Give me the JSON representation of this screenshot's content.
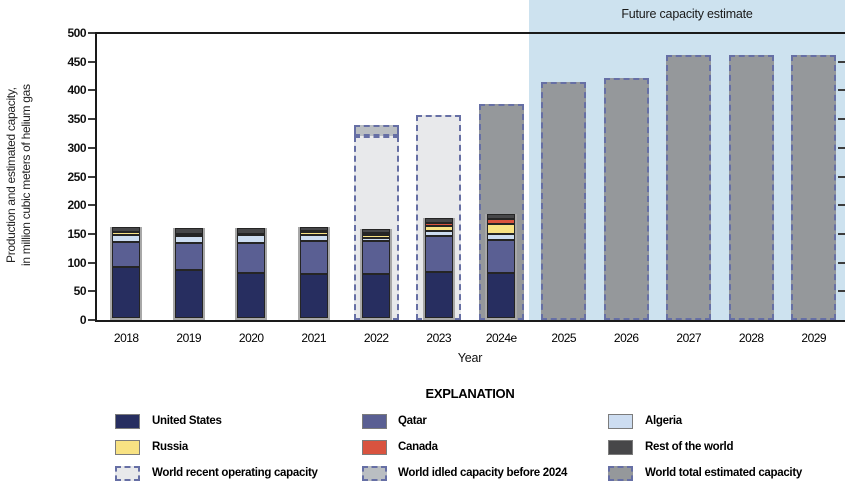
{
  "header": {
    "future_label": "Future capacity estimate"
  },
  "y_axis": {
    "title_line1": "Production and estimated capacity,",
    "title_line2": "in million cubic meters of helium gas",
    "tick_values": [
      0,
      50,
      100,
      150,
      200,
      250,
      300,
      350,
      400,
      450,
      500
    ]
  },
  "x_axis": {
    "label": "Year"
  },
  "legend": {
    "heading": "EXPLANATION",
    "columns": [
      [
        {
          "label": "United States",
          "swatch": "united_states",
          "dashed": false
        },
        {
          "label": "Russia",
          "swatch": "russia",
          "dashed": false
        },
        {
          "label": "World recent operating capacity",
          "swatch": "recent",
          "dashed": true
        }
      ],
      [
        {
          "label": "Qatar",
          "swatch": "qatar",
          "dashed": false
        },
        {
          "label": "Canada",
          "swatch": "canada",
          "dashed": false
        },
        {
          "label": "World idled capacity before 2024",
          "swatch": "idled",
          "dashed": true
        }
      ],
      [
        {
          "label": "Algeria",
          "swatch": "algeria",
          "dashed": false
        },
        {
          "label": "Rest of the world",
          "swatch": "rest_of_world",
          "dashed": false
        },
        {
          "label": "World total estimated capacity",
          "swatch": "total",
          "dashed": true
        }
      ]
    ]
  },
  "colors": {
    "united_states": "#272e60",
    "qatar": "#5a5f93",
    "algeria": "#cdddf1",
    "russia": "#f8e283",
    "canada": "#d9533f",
    "rest_of_world": "#474749",
    "recent": "#e8e9eb",
    "idled": "#babec2",
    "total": "#95989b",
    "future_bg": "#cde2ef",
    "dash_border": "#666fa5",
    "axis": "#1a1a1a"
  },
  "chart_data": {
    "type": "bar",
    "stacked": true,
    "xlabel": "Year",
    "ylabel": "Production and estimated capacity, in million cubic meters of helium gas",
    "ylim": [
      0,
      500
    ],
    "ytick_step": 50,
    "grid": false,
    "legend_position": "bottom",
    "categories": [
      "2018",
      "2019",
      "2020",
      "2021",
      "2022",
      "2023",
      "2024e",
      "2025",
      "2026",
      "2027",
      "2028",
      "2029"
    ],
    "series": [
      {
        "name": "United States",
        "color_key": "united_states",
        "values": [
          88,
          83,
          79,
          76,
          77,
          80,
          78,
          0,
          0,
          0,
          0,
          0
        ]
      },
      {
        "name": "Qatar",
        "color_key": "qatar",
        "values": [
          45,
          48,
          52,
          59,
          57,
          63,
          58,
          0,
          0,
          0,
          0,
          0
        ]
      },
      {
        "name": "Algeria",
        "color_key": "algeria",
        "values": [
          12,
          12,
          13,
          10,
          6,
          9,
          11,
          0,
          0,
          0,
          0,
          0
        ]
      },
      {
        "name": "Russia",
        "color_key": "russia",
        "values": [
          4,
          4,
          3,
          5,
          5,
          8,
          17,
          0,
          0,
          0,
          0,
          0
        ]
      },
      {
        "name": "Canada",
        "color_key": "canada",
        "values": [
          0,
          0,
          0,
          1,
          3,
          6,
          8,
          0,
          0,
          0,
          0,
          0
        ]
      },
      {
        "name": "Rest of the world",
        "color_key": "rest_of_world",
        "values": [
          9,
          9,
          10,
          8,
          7,
          8,
          9,
          0,
          0,
          0,
          0,
          0
        ]
      }
    ],
    "overlays": [
      {
        "label": "World recent operating capacity",
        "category": "2022",
        "from": 0,
        "to": 320,
        "style": "recent"
      },
      {
        "label": "World idled capacity before 2024",
        "category": "2022",
        "from": 320,
        "to": 340,
        "style": "idled"
      },
      {
        "label": "World recent operating capacity",
        "category": "2023",
        "from": 0,
        "to": 358,
        "style": "recent"
      },
      {
        "label": "World total estimated capacity",
        "category": "2024e",
        "from": 0,
        "to": 376,
        "style": "total"
      },
      {
        "label": "World total estimated capacity",
        "category": "2025",
        "from": 0,
        "to": 415,
        "style": "total"
      },
      {
        "label": "World total estimated capacity",
        "category": "2026",
        "from": 0,
        "to": 422,
        "style": "total"
      },
      {
        "label": "World total estimated capacity",
        "category": "2027",
        "from": 0,
        "to": 462,
        "style": "total"
      },
      {
        "label": "World total estimated capacity",
        "category": "2028",
        "from": 0,
        "to": 462,
        "style": "total"
      },
      {
        "label": "World total estimated capacity",
        "category": "2029",
        "from": 0,
        "to": 462,
        "style": "total"
      }
    ],
    "future_region": {
      "categories": [
        "2025",
        "2026",
        "2027",
        "2028",
        "2029"
      ],
      "label": "Future capacity estimate"
    }
  }
}
